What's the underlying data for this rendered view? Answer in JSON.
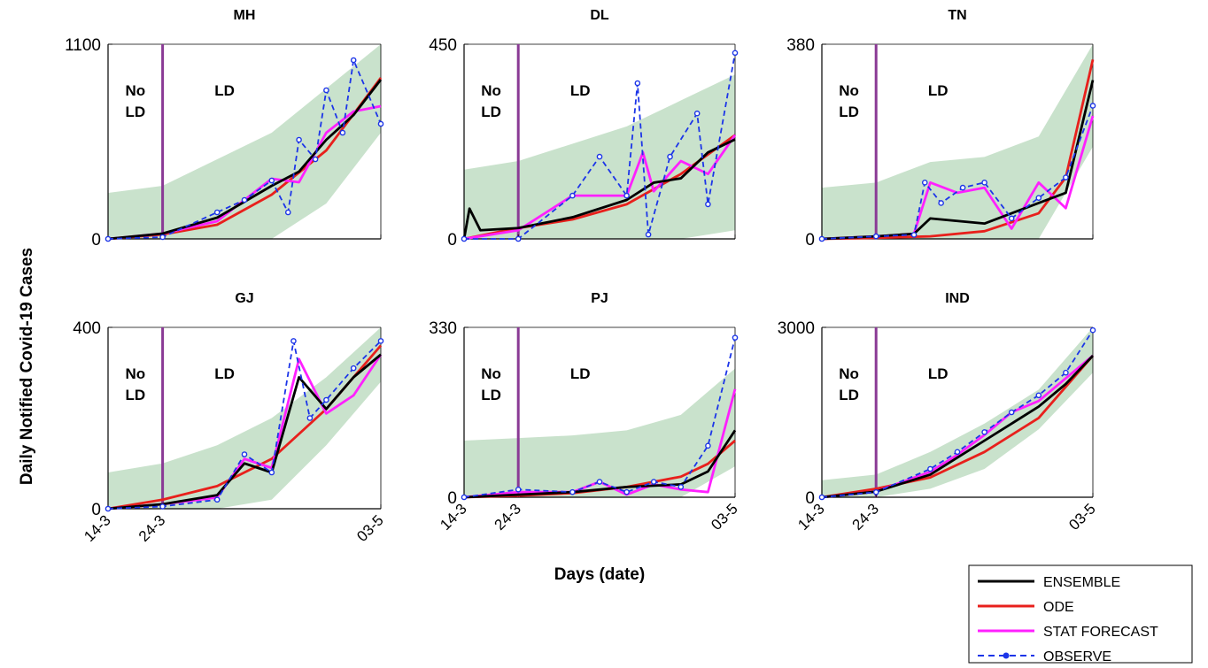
{
  "figure": {
    "ylabel": "Daily Notified Covid-19 Cases",
    "xlabel": "Days (date)"
  },
  "colors": {
    "ensemble": "#000000",
    "ode": "#e8201c",
    "stat_forecast": "#ff20ff",
    "observe": "#1c35e8",
    "band": "#c9e2cc",
    "lockdown_line": "#8a3a95"
  },
  "legend": {
    "items": [
      {
        "key": "ensemble",
        "label": "ENSEMBLE",
        "style": "solid"
      },
      {
        "key": "ode",
        "label": "ODE",
        "style": "solid"
      },
      {
        "key": "stat_forecast",
        "label": "STAT FORECAST",
        "style": "solid"
      },
      {
        "key": "observe",
        "label": "OBSERVE",
        "style": "dashed-marker"
      }
    ]
  },
  "region_labels": {
    "before": [
      "No",
      "LD"
    ],
    "after": "LD"
  },
  "chart_data": [
    {
      "type": "line",
      "title": "MH",
      "ylim": [
        0,
        1100
      ],
      "yticks": [
        0,
        1100
      ],
      "xlim": [
        "14-3",
        "03-5"
      ],
      "xticks": [
        "14-3",
        "24-3",
        "03-5"
      ],
      "lockdown_date": "24-3",
      "series": [
        {
          "name": "ENSEMBLE",
          "x": [
            "14-3",
            "24-3",
            "03-4",
            "13-4",
            "18-4",
            "23-4",
            "28-4",
            "03-5"
          ],
          "values": [
            0,
            30,
            120,
            300,
            380,
            560,
            700,
            900
          ]
        },
        {
          "name": "ODE",
          "x": [
            "14-3",
            "24-3",
            "03-4",
            "13-4",
            "23-4",
            "03-5"
          ],
          "values": [
            0,
            25,
            80,
            250,
            500,
            910
          ]
        },
        {
          "name": "STAT FORECAST",
          "x": [
            "14-3",
            "24-3",
            "03-4",
            "13-4",
            "18-4",
            "23-4",
            "28-4",
            "03-5"
          ],
          "values": [
            0,
            30,
            100,
            340,
            320,
            600,
            720,
            750
          ]
        },
        {
          "name": "OBSERVE",
          "x": [
            "14-3",
            "24-3",
            "03-4",
            "08-4",
            "13-4",
            "16-4",
            "18-4",
            "21-4",
            "23-4",
            "26-4",
            "28-4",
            "03-5"
          ],
          "values": [
            0,
            10,
            150,
            220,
            330,
            150,
            560,
            450,
            840,
            600,
            1010,
            650
          ]
        }
      ],
      "band": {
        "x": [
          "14-3",
          "24-3",
          "03-4",
          "13-4",
          "23-4",
          "03-5"
        ],
        "lower": [
          0,
          0,
          0,
          0,
          200,
          600
        ],
        "upper": [
          260,
          300,
          450,
          600,
          850,
          1100
        ]
      }
    },
    {
      "type": "line",
      "title": "DL",
      "ylim": [
        0,
        450
      ],
      "yticks": [
        0,
        450
      ],
      "xlim": [
        "14-3",
        "03-5"
      ],
      "xticks": [
        "14-3",
        "24-3",
        "03-5"
      ],
      "lockdown_date": "24-3",
      "series": [
        {
          "name": "ENSEMBLE",
          "x": [
            "14-3",
            "15-3",
            "17-3",
            "24-3",
            "03-4",
            "13-4",
            "18-4",
            "23-4",
            "28-4",
            "03-5"
          ],
          "values": [
            0,
            70,
            20,
            25,
            50,
            90,
            130,
            140,
            200,
            230
          ]
        },
        {
          "name": "ODE",
          "x": [
            "14-3",
            "24-3",
            "03-4",
            "13-4",
            "23-4",
            "03-5"
          ],
          "values": [
            0,
            25,
            45,
            80,
            150,
            240
          ]
        },
        {
          "name": "STAT FORECAST",
          "x": [
            "14-3",
            "24-3",
            "03-4",
            "13-4",
            "16-4",
            "18-4",
            "23-4",
            "28-4",
            "03-5"
          ],
          "values": [
            0,
            20,
            100,
            100,
            200,
            110,
            180,
            150,
            240
          ]
        },
        {
          "name": "OBSERVE",
          "x": [
            "14-3",
            "24-3",
            "03-4",
            "08-4",
            "13-4",
            "15-4",
            "17-4",
            "21-4",
            "26-4",
            "28-4",
            "03-5"
          ],
          "values": [
            0,
            0,
            100,
            190,
            100,
            360,
            10,
            190,
            290,
            80,
            430
          ]
        }
      ],
      "band": {
        "x": [
          "14-3",
          "24-3",
          "03-4",
          "13-4",
          "23-4",
          "03-5"
        ],
        "lower": [
          0,
          0,
          0,
          0,
          0,
          20
        ],
        "upper": [
          160,
          180,
          220,
          260,
          320,
          380
        ]
      }
    },
    {
      "type": "line",
      "title": "TN",
      "ylim": [
        0,
        380
      ],
      "yticks": [
        0,
        380
      ],
      "xlim": [
        "14-3",
        "03-5"
      ],
      "xticks": [
        "14-3",
        "24-3",
        "03-5"
      ],
      "lockdown_date": "24-3",
      "series": [
        {
          "name": "ENSEMBLE",
          "x": [
            "14-3",
            "24-3",
            "31-3",
            "03-4",
            "13-4",
            "23-4",
            "28-4",
            "03-5"
          ],
          "values": [
            0,
            5,
            10,
            40,
            30,
            70,
            90,
            310
          ]
        },
        {
          "name": "ODE",
          "x": [
            "14-3",
            "24-3",
            "03-4",
            "13-4",
            "23-4",
            "28-4",
            "03-5"
          ],
          "values": [
            0,
            2,
            5,
            15,
            50,
            120,
            350
          ]
        },
        {
          "name": "STAT FORECAST",
          "x": [
            "14-3",
            "24-3",
            "31-3",
            "03-4",
            "08-4",
            "13-4",
            "18-4",
            "23-4",
            "28-4",
            "03-5"
          ],
          "values": [
            0,
            5,
            10,
            110,
            90,
            100,
            20,
            110,
            60,
            240
          ]
        },
        {
          "name": "OBSERVE",
          "x": [
            "14-3",
            "24-3",
            "31-3",
            "02-4",
            "05-4",
            "09-4",
            "13-4",
            "18-4",
            "23-4",
            "28-4",
            "03-5"
          ],
          "values": [
            0,
            5,
            8,
            110,
            70,
            100,
            110,
            40,
            80,
            120,
            260
          ]
        }
      ],
      "band": {
        "x": [
          "14-3",
          "24-3",
          "03-4",
          "13-4",
          "23-4",
          "03-5"
        ],
        "lower": [
          0,
          0,
          0,
          0,
          0,
          180
        ],
        "upper": [
          100,
          110,
          150,
          160,
          200,
          380
        ]
      }
    },
    {
      "type": "line",
      "title": "GJ",
      "ylim": [
        0,
        400
      ],
      "yticks": [
        0,
        400
      ],
      "xlim": [
        "14-3",
        "03-5"
      ],
      "xticks": [
        "14-3",
        "24-3",
        "03-5"
      ],
      "lockdown_date": "24-3",
      "series": [
        {
          "name": "ENSEMBLE",
          "x": [
            "14-3",
            "24-3",
            "03-4",
            "08-4",
            "13-4",
            "18-4",
            "23-4",
            "28-4",
            "03-5"
          ],
          "values": [
            0,
            10,
            30,
            100,
            80,
            290,
            220,
            290,
            340
          ]
        },
        {
          "name": "ODE",
          "x": [
            "14-3",
            "24-3",
            "03-4",
            "13-4",
            "23-4",
            "03-5"
          ],
          "values": [
            0,
            20,
            50,
            110,
            220,
            360
          ]
        },
        {
          "name": "STAT FORECAST",
          "x": [
            "14-3",
            "24-3",
            "03-4",
            "08-4",
            "13-4",
            "18-4",
            "23-4",
            "28-4",
            "03-5"
          ],
          "values": [
            0,
            10,
            25,
            110,
            90,
            330,
            210,
            250,
            340
          ]
        },
        {
          "name": "OBSERVE",
          "x": [
            "14-3",
            "24-3",
            "03-4",
            "08-4",
            "13-4",
            "17-4",
            "20-4",
            "23-4",
            "28-4",
            "03-5"
          ],
          "values": [
            0,
            5,
            20,
            120,
            80,
            370,
            200,
            240,
            310,
            370
          ]
        }
      ],
      "band": {
        "x": [
          "14-3",
          "24-3",
          "03-4",
          "13-4",
          "23-4",
          "03-5"
        ],
        "lower": [
          0,
          0,
          0,
          20,
          140,
          280
        ],
        "upper": [
          80,
          100,
          140,
          200,
          290,
          400
        ]
      }
    },
    {
      "type": "line",
      "title": "PJ",
      "ylim": [
        0,
        330
      ],
      "yticks": [
        0,
        330
      ],
      "xlim": [
        "14-3",
        "03-5"
      ],
      "xticks": [
        "14-3",
        "24-3",
        "03-5"
      ],
      "lockdown_date": "24-3",
      "series": [
        {
          "name": "ENSEMBLE",
          "x": [
            "14-3",
            "24-3",
            "03-4",
            "13-4",
            "23-4",
            "28-4",
            "03-5"
          ],
          "values": [
            0,
            5,
            10,
            20,
            25,
            50,
            130
          ]
        },
        {
          "name": "ODE",
          "x": [
            "14-3",
            "24-3",
            "03-4",
            "13-4",
            "23-4",
            "28-4",
            "03-5"
          ],
          "values": [
            0,
            3,
            8,
            20,
            40,
            65,
            110
          ]
        },
        {
          "name": "STAT FORECAST",
          "x": [
            "14-3",
            "24-3",
            "03-4",
            "08-4",
            "13-4",
            "18-4",
            "23-4",
            "28-4",
            "03-5"
          ],
          "values": [
            0,
            10,
            10,
            30,
            5,
            25,
            15,
            10,
            210
          ]
        },
        {
          "name": "OBSERVE",
          "x": [
            "14-3",
            "24-3",
            "03-4",
            "08-4",
            "13-4",
            "18-4",
            "23-4",
            "28-4",
            "03-5"
          ],
          "values": [
            0,
            15,
            10,
            30,
            10,
            30,
            20,
            100,
            310
          ]
        }
      ],
      "band": {
        "x": [
          "14-3",
          "24-3",
          "03-4",
          "13-4",
          "23-4",
          "03-5"
        ],
        "lower": [
          0,
          0,
          0,
          0,
          0,
          60
        ],
        "upper": [
          110,
          115,
          120,
          130,
          160,
          250
        ]
      }
    },
    {
      "type": "line",
      "title": "IND",
      "ylim": [
        0,
        3000
      ],
      "yticks": [
        0,
        3000
      ],
      "xlim": [
        "14-3",
        "03-5"
      ],
      "xticks": [
        "14-3",
        "24-3",
        "03-5"
      ],
      "lockdown_date": "24-3",
      "series": [
        {
          "name": "ENSEMBLE",
          "x": [
            "14-3",
            "24-3",
            "03-4",
            "08-4",
            "13-4",
            "18-4",
            "23-4",
            "28-4",
            "03-5"
          ],
          "values": [
            0,
            100,
            400,
            700,
            1000,
            1300,
            1600,
            2000,
            2500
          ]
        },
        {
          "name": "ODE",
          "x": [
            "14-3",
            "24-3",
            "03-4",
            "13-4",
            "23-4",
            "03-5"
          ],
          "values": [
            0,
            150,
            350,
            800,
            1400,
            2500
          ]
        },
        {
          "name": "STAT FORECAST",
          "x": [
            "14-3",
            "24-3",
            "03-4",
            "08-4",
            "13-4",
            "18-4",
            "23-4",
            "28-4",
            "03-5"
          ],
          "values": [
            0,
            100,
            450,
            750,
            1100,
            1500,
            1700,
            2100,
            2500
          ]
        },
        {
          "name": "OBSERVE",
          "x": [
            "14-3",
            "24-3",
            "03-4",
            "08-4",
            "13-4",
            "18-4",
            "23-4",
            "28-4",
            "03-5"
          ],
          "values": [
            0,
            90,
            500,
            800,
            1150,
            1500,
            1800,
            2200,
            2950
          ]
        }
      ],
      "band": {
        "x": [
          "14-3",
          "24-3",
          "03-4",
          "13-4",
          "23-4",
          "03-5"
        ],
        "lower": [
          0,
          0,
          150,
          500,
          1200,
          2200
        ],
        "upper": [
          300,
          400,
          800,
          1300,
          1900,
          3000
        ]
      }
    }
  ]
}
